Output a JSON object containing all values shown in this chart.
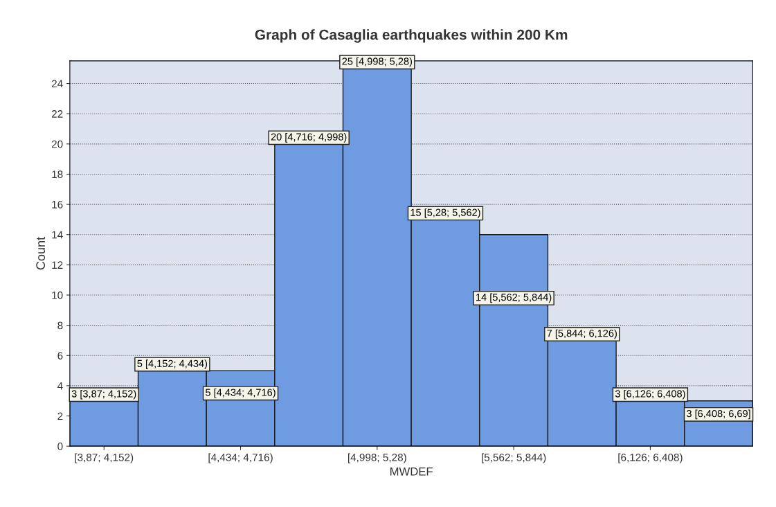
{
  "chart_data": {
    "type": "bar",
    "title": "Graph of Casaglia earthquakes within 200 Km",
    "xlabel": "MWDEF",
    "ylabel": "Count",
    "categories": [
      "[3,87; 4,152)",
      null,
      "[4,434; 4,716)",
      null,
      "[4,998; 5,28)",
      null,
      "[5,562; 5,844)",
      null,
      "[6,126; 6,408)",
      null
    ],
    "values": [
      3,
      5,
      5,
      20,
      25,
      15,
      14,
      7,
      3,
      3
    ],
    "color": "#6f9be0",
    "value_labels": [
      "3 [3,87; 4,152)",
      "5 [4,152; 4,434)",
      "5 [4,434; 4,716)",
      "20 [4,716; 4,998)",
      "25 [4,998; 5,28)",
      "15 [5,28; 5,562)",
      "14 [5,562; 5,844)",
      "7 [5,844; 6,126)",
      "3 [6,126; 6,408)",
      "3 [6,408; 6,69]"
    ],
    "ylim": [
      0,
      25.5
    ],
    "yticks": [
      0,
      2,
      4,
      6,
      8,
      10,
      12,
      14,
      16,
      18,
      20,
      22,
      24
    ],
    "grid": "y"
  }
}
